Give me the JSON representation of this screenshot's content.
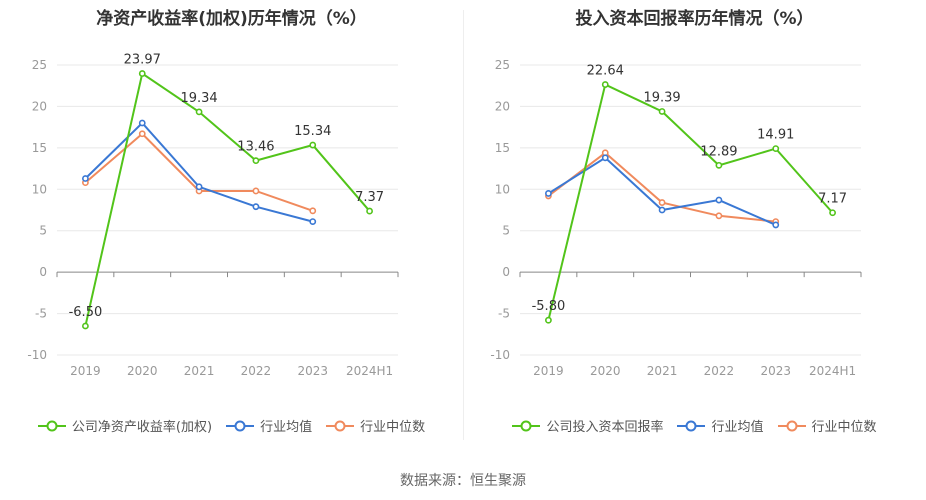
{
  "source": "数据来源：恒生聚源",
  "chart_data": [
    {
      "type": "line",
      "title": "净资产收益率(加权)历年情况（%）",
      "categories": [
        "2019",
        "2020",
        "2021",
        "2022",
        "2023",
        "2024H1"
      ],
      "ylim": [
        -10,
        25
      ],
      "yticks": [
        -10,
        -5,
        0,
        5,
        10,
        15,
        20,
        25
      ],
      "grid": true,
      "legend_position": "bottom",
      "series": [
        {
          "name": "公司净资产收益率(加权)",
          "color": "#52c41a",
          "values": [
            -6.5,
            23.97,
            19.34,
            13.46,
            15.34,
            7.37
          ],
          "data_labels": [
            "-6.50",
            "23.97",
            "19.34",
            "13.46",
            "15.34",
            "7.37"
          ]
        },
        {
          "name": "行业均值",
          "color": "#3a78d4",
          "values": [
            11.3,
            18.0,
            10.3,
            7.9,
            6.1,
            null
          ]
        },
        {
          "name": "行业中位数",
          "color": "#f08a5d",
          "values": [
            10.8,
            16.7,
            9.8,
            9.8,
            7.4,
            null
          ]
        }
      ]
    },
    {
      "type": "line",
      "title": "投入资本回报率历年情况（%）",
      "categories": [
        "2019",
        "2020",
        "2021",
        "2022",
        "2023",
        "2024H1"
      ],
      "ylim": [
        -10,
        25
      ],
      "yticks": [
        -10,
        -5,
        0,
        5,
        10,
        15,
        20,
        25
      ],
      "grid": true,
      "legend_position": "bottom",
      "series": [
        {
          "name": "公司投入资本回报率",
          "color": "#52c41a",
          "values": [
            -5.8,
            22.64,
            19.39,
            12.89,
            14.91,
            7.17
          ],
          "data_labels": [
            "-5.80",
            "22.64",
            "19.39",
            "12.89",
            "14.91",
            "7.17"
          ]
        },
        {
          "name": "行业均值",
          "color": "#3a78d4",
          "values": [
            9.5,
            13.8,
            7.5,
            8.7,
            5.7,
            null
          ]
        },
        {
          "name": "行业中位数",
          "color": "#f08a5d",
          "values": [
            9.2,
            14.4,
            8.4,
            6.8,
            6.1,
            null
          ]
        }
      ]
    }
  ]
}
